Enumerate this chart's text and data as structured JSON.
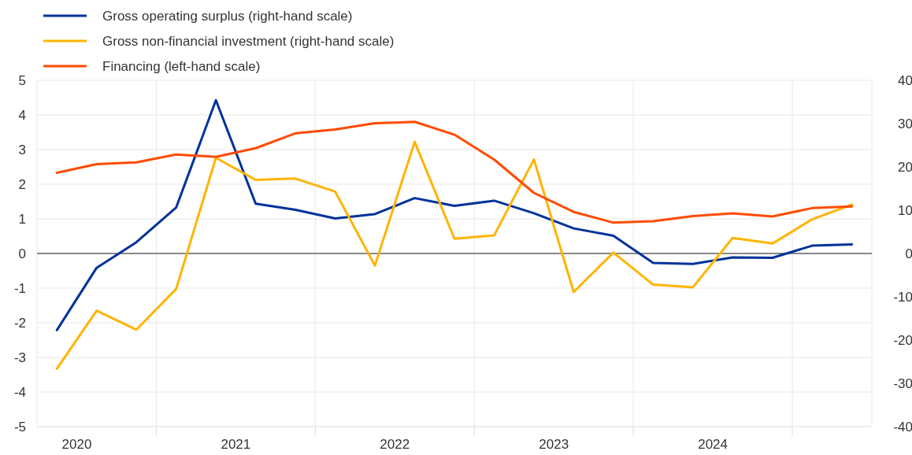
{
  "chart_data": {
    "type": "line",
    "x": [
      2020.375,
      2020.625,
      2020.875,
      2021.125,
      2021.375,
      2021.625,
      2021.875,
      2022.125,
      2022.375,
      2022.625,
      2022.875,
      2023.125,
      2023.375,
      2023.625,
      2023.875,
      2024.125,
      2024.375,
      2024.625,
      2024.875,
      2025.125,
      2025.375
    ],
    "series": [
      {
        "name": "Gross operating surplus (right-hand scale)",
        "color": "#003299",
        "axis": "y2",
        "values": [
          -17.7,
          -3.3,
          2.6,
          10.6,
          35.4,
          11.5,
          10.1,
          8.1,
          9.1,
          12.8,
          11.0,
          12.2,
          9.3,
          5.8,
          4.1,
          -2.2,
          -2.4,
          -0.9,
          -1.0,
          1.8,
          2.1
        ]
      },
      {
        "name": "Gross non-financial investment (right-hand scale)",
        "color": "#ffb400",
        "axis": "y2",
        "values": [
          -26.6,
          -13.2,
          -17.6,
          -8.2,
          22.1,
          17.0,
          17.3,
          14.3,
          -2.8,
          25.8,
          3.4,
          4.2,
          21.7,
          -8.9,
          0.2,
          -7.2,
          -7.8,
          3.6,
          2.3,
          7.9,
          11.3
        ]
      },
      {
        "name": "Financing (left-hand scale)",
        "color": "#ff4b00",
        "values": [
          2.33,
          2.58,
          2.63,
          2.86,
          2.79,
          3.04,
          3.47,
          3.58,
          3.76,
          3.8,
          3.43,
          2.71,
          1.75,
          1.2,
          0.89,
          0.93,
          1.08,
          1.16,
          1.07,
          1.31,
          1.36
        ]
      }
    ],
    "xlim": [
      2020.25,
      2025.5
    ],
    "xticks": [
      {
        "value": 2020.5,
        "label": "2020"
      },
      {
        "value": 2021,
        "label": null
      },
      {
        "value": 2021.5,
        "label": "2021"
      },
      {
        "value": 2022,
        "label": null
      },
      {
        "value": 2022.5,
        "label": "2022"
      },
      {
        "value": 2023,
        "label": null
      },
      {
        "value": 2023.5,
        "label": "2023"
      },
      {
        "value": 2024,
        "label": null
      },
      {
        "value": 2024.5,
        "label": "2024"
      },
      {
        "value": 2025,
        "label": null
      }
    ],
    "ylim": [
      -5,
      5
    ],
    "yticks": [
      -5,
      -4,
      -3,
      -2,
      -1,
      0,
      1,
      2,
      3,
      4,
      5
    ],
    "y2lim": [
      -40,
      40
    ],
    "y2ticks": [
      -40,
      -30,
      -20,
      -10,
      0,
      10,
      20,
      30,
      40
    ],
    "ref_lines": [
      {
        "axis": "y",
        "value": 0,
        "color": "#888888"
      }
    ],
    "grid": true,
    "legend": "top left",
    "line_style": "solid",
    "marker": "none"
  }
}
